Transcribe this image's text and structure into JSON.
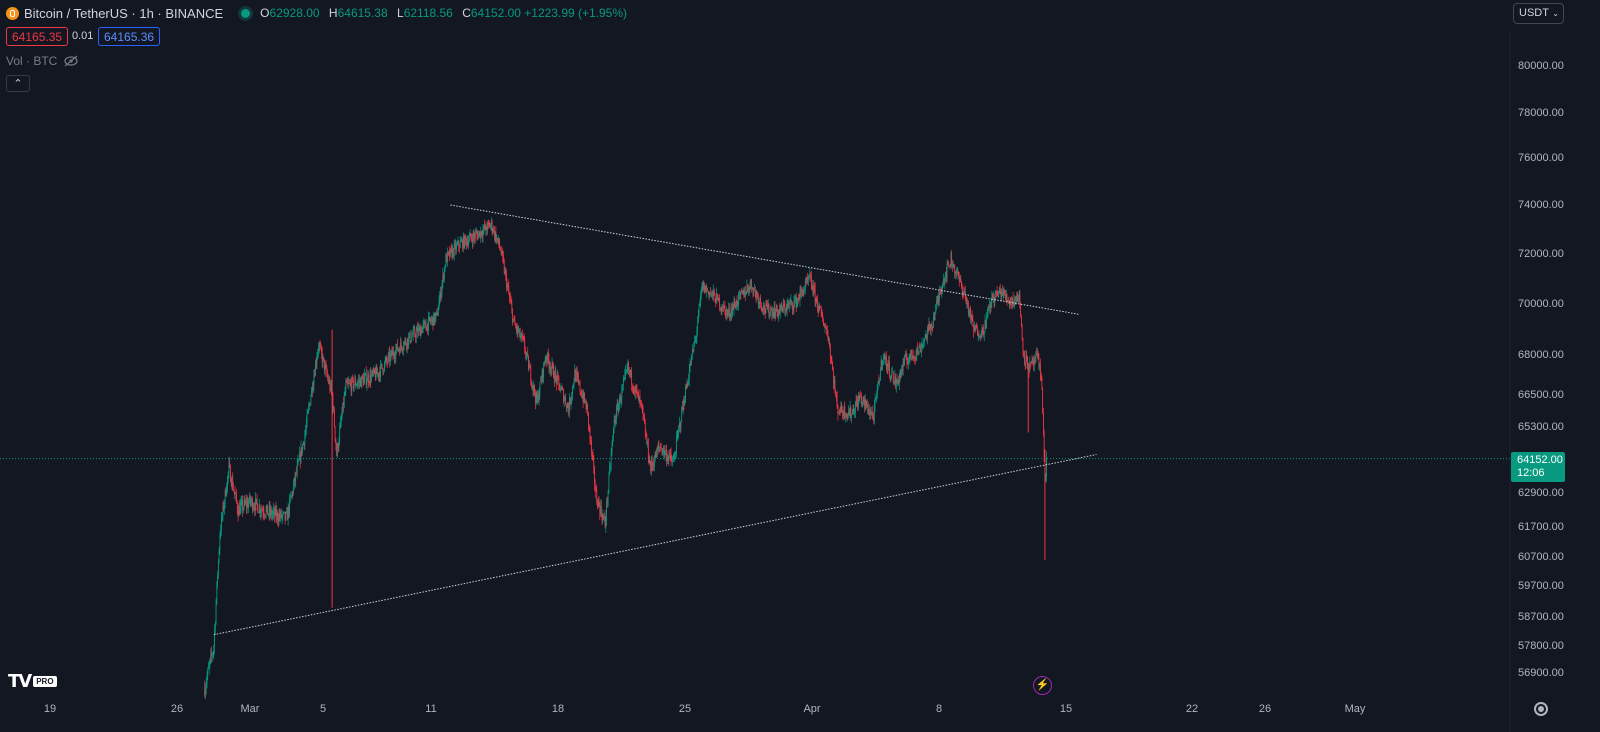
{
  "header": {
    "symbol_title": "Bitcoin / TetherUS · 1h · BINANCE",
    "ohlc": [
      {
        "k": "O",
        "v": "62928.00"
      },
      {
        "k": "H",
        "v": "64615.38"
      },
      {
        "k": "L",
        "v": "62118.56"
      },
      {
        "k": "C",
        "v": "64152.00"
      }
    ],
    "change": "+1223.99 (+1.95%)"
  },
  "trade": {
    "sell_price": "64165.35",
    "spread": "0.01",
    "buy_price": "64165.36"
  },
  "volume_label": "Vol · BTC",
  "currency_button": "USDT",
  "price_scale": [
    "80000.00",
    "78000.00",
    "76000.00",
    "74000.00",
    "72000.00",
    "70000.00",
    "68000.00",
    "66500.00",
    "65300.00",
    "62900.00",
    "61700.00",
    "60700.00",
    "59700.00",
    "58700.00",
    "57800.00",
    "56900.00"
  ],
  "last_price": {
    "price": "64152.00",
    "countdown": "12:06"
  },
  "time_scale": [
    "19",
    "26",
    "Mar",
    "5",
    "11",
    "18",
    "25",
    "Apr",
    "8",
    "15",
    "22",
    "26",
    "May"
  ],
  "colors": {
    "bg": "#131722",
    "up": "#089981",
    "down": "#f23645",
    "line": "#d1d4dc",
    "accent": "#2962ff"
  },
  "icons": [
    "bitcoin-coin-icon",
    "eye-off-icon",
    "chevron-up-icon",
    "chevron-down-icon",
    "lightning-icon",
    "settings-gear-icon",
    "tradingview-logo"
  ],
  "chart_data": {
    "type": "candlestick",
    "symbol": "BTCUSDT",
    "interval": "1h",
    "ylim": [
      56000,
      81000
    ],
    "price_path": [
      [
        "02-27 12:00",
        56400
      ],
      [
        "02-28 00:00",
        57800
      ],
      [
        "02-28 08:00",
        61500
      ],
      [
        "02-28 20:00",
        63800
      ],
      [
        "02-29 08:00",
        62300
      ],
      [
        "03-01 00:00",
        62600
      ],
      [
        "03-02 00:00",
        62200
      ],
      [
        "03-03 00:00",
        62000
      ],
      [
        "03-04 00:00",
        65000
      ],
      [
        "03-04 18:00",
        68400
      ],
      [
        "03-05 12:00",
        66500
      ],
      [
        "03-05 18:00",
        64300
      ],
      [
        "03-06 06:00",
        66800
      ],
      [
        "03-07 00:00",
        67000
      ],
      [
        "03-08 00:00",
        67300
      ],
      [
        "03-09 00:00",
        68200
      ],
      [
        "03-10 00:00",
        68800
      ],
      [
        "03-11 06:00",
        69500
      ],
      [
        "03-11 18:00",
        71800
      ],
      [
        "03-12 12:00",
        72400
      ],
      [
        "03-13 12:00",
        72800
      ],
      [
        "03-14 06:00",
        73200
      ],
      [
        "03-14 18:00",
        72200
      ],
      [
        "03-15 12:00",
        69200
      ],
      [
        "03-16 00:00",
        68500
      ],
      [
        "03-16 18:00",
        66200
      ],
      [
        "03-17 06:00",
        68000
      ],
      [
        "03-18 12:00",
        66000
      ],
      [
        "03-18 20:00",
        67300
      ],
      [
        "03-19 12:00",
        66000
      ],
      [
        "03-20 00:00",
        62800
      ],
      [
        "03-20 12:00",
        61800
      ],
      [
        "03-21 00:00",
        65500
      ],
      [
        "03-21 18:00",
        67500
      ],
      [
        "03-22 12:00",
        66000
      ],
      [
        "03-23 00:00",
        63800
      ],
      [
        "03-23 12:00",
        64600
      ],
      [
        "03-24 06:00",
        64000
      ],
      [
        "03-24 18:00",
        66000
      ],
      [
        "03-25 12:00",
        68800
      ],
      [
        "03-25 20:00",
        70700
      ],
      [
        "03-26 12:00",
        70300
      ],
      [
        "03-27 06:00",
        69600
      ],
      [
        "03-27 18:00",
        70100
      ],
      [
        "03-28 12:00",
        70800
      ],
      [
        "03-29 06:00",
        69800
      ],
      [
        "03-30 00:00",
        69700
      ],
      [
        "03-31 00:00",
        70100
      ],
      [
        "03-31 18:00",
        71000
      ],
      [
        "04-01 06:00",
        69800
      ],
      [
        "04-01 18:00",
        68800
      ],
      [
        "04-02 06:00",
        66000
      ],
      [
        "04-03 00:00",
        65800
      ],
      [
        "04-03 12:00",
        66400
      ],
      [
        "04-04 06:00",
        65700
      ],
      [
        "04-04 18:00",
        68000
      ],
      [
        "04-05 12:00",
        66900
      ],
      [
        "04-06 00:00",
        67800
      ],
      [
        "04-06 18:00",
        68200
      ],
      [
        "04-07 12:00",
        69300
      ],
      [
        "04-08 00:00",
        70800
      ],
      [
        "04-08 12:00",
        71800
      ],
      [
        "04-09 06:00",
        70400
      ],
      [
        "04-09 18:00",
        69000
      ],
      [
        "04-10 06:00",
        68900
      ],
      [
        "04-10 18:00",
        70200
      ],
      [
        "04-11 06:00",
        70500
      ],
      [
        "04-11 18:00",
        70100
      ],
      [
        "04-12 06:00",
        70300
      ],
      [
        "04-12 12:00",
        68000
      ],
      [
        "04-12 20:00",
        67500
      ],
      [
        "04-13 06:00",
        67900
      ],
      [
        "04-13 12:00",
        67000
      ],
      [
        "04-13 15:00",
        64000
      ],
      [
        "04-13 16:00",
        63200
      ],
      [
        "04-13 18:00",
        64152
      ]
    ],
    "trendlines": [
      {
        "from": [
          "02-28 00:00",
          58150
        ],
        "to": [
          "04-16 12:00",
          64300
        ]
      },
      {
        "from": [
          "03-12 00:00",
          74000
        ],
        "to": [
          "04-15 12:00",
          69600
        ]
      }
    ],
    "last_close": 64152.0
  }
}
